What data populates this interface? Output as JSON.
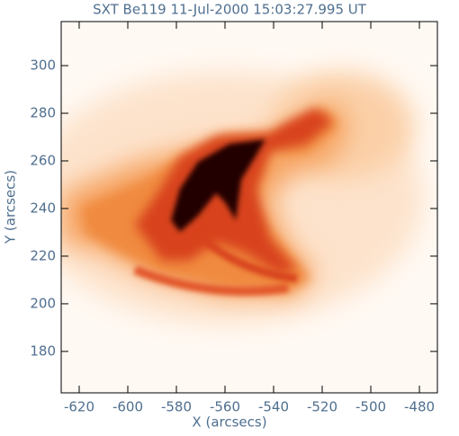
{
  "chart_data": {
    "type": "image",
    "title": "SXT Be119 11-Jul-2000 15:03:27.995 UT",
    "x_label": "X (arcsecs)",
    "y_label": "Y (arcsecs)",
    "xlim": [
      -627.4,
      -472.6
    ],
    "ylim": [
      162.6,
      318.5
    ],
    "xticks": [
      -620,
      -600,
      -580,
      -560,
      -540,
      -520,
      -500,
      -480
    ],
    "yticks": [
      180,
      200,
      220,
      240,
      260,
      280,
      300
    ]
  }
}
